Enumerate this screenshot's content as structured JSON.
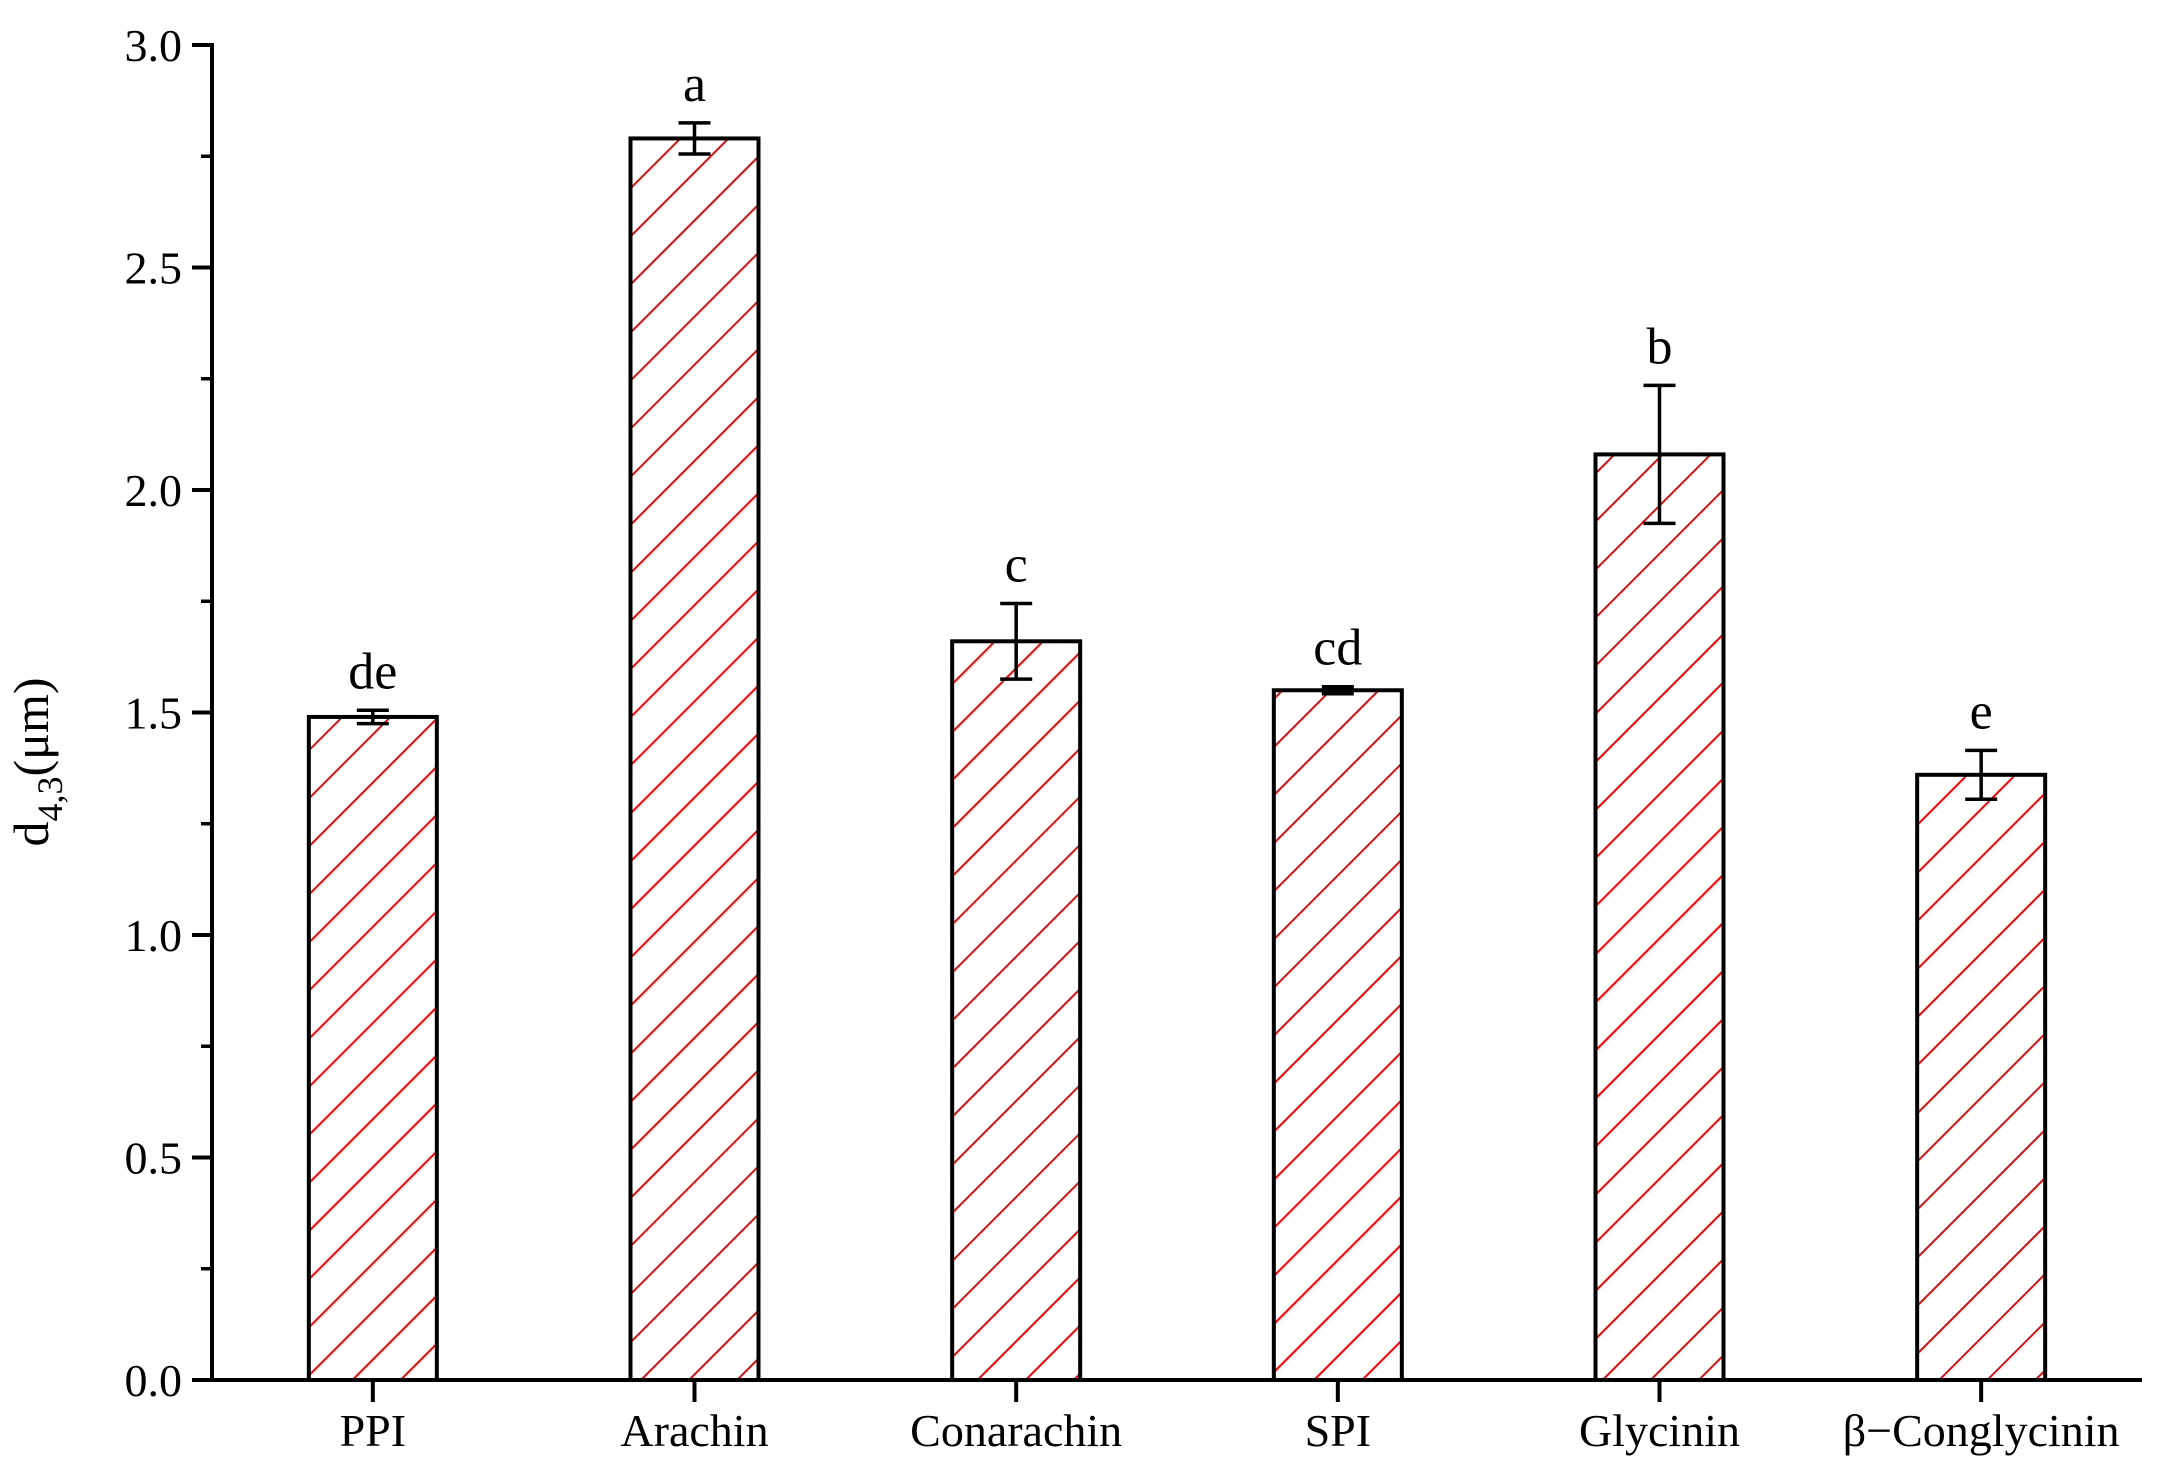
{
  "chart_data": {
    "type": "bar",
    "categories": [
      "PPI",
      "Arachin",
      "Conarachin",
      "SPI",
      "Glycinin",
      "β−Conglycinin"
    ],
    "values": [
      1.49,
      2.79,
      1.66,
      1.55,
      2.08,
      1.36
    ],
    "errors": [
      0.015,
      0.035,
      0.085,
      0.008,
      0.155,
      0.055
    ],
    "significance_labels": [
      "de",
      "a",
      "c",
      "cd",
      "b",
      "e"
    ],
    "ylabel": {
      "main": "d",
      "sub": "4,3",
      "unit": "(μm)"
    },
    "ylim": [
      0,
      3.0
    ],
    "yticks": [
      0.0,
      0.5,
      1.0,
      1.5,
      2.0,
      2.5,
      3.0
    ],
    "ytick_labels": [
      "0.0",
      "0.5",
      "1.0",
      "1.5",
      "2.0",
      "2.5",
      "3.0"
    ],
    "grid": false,
    "colors": {
      "hatch": "#ff0000",
      "bar_edge": "#000000",
      "bar_fill": "#ffffff",
      "axis": "#000000"
    }
  }
}
